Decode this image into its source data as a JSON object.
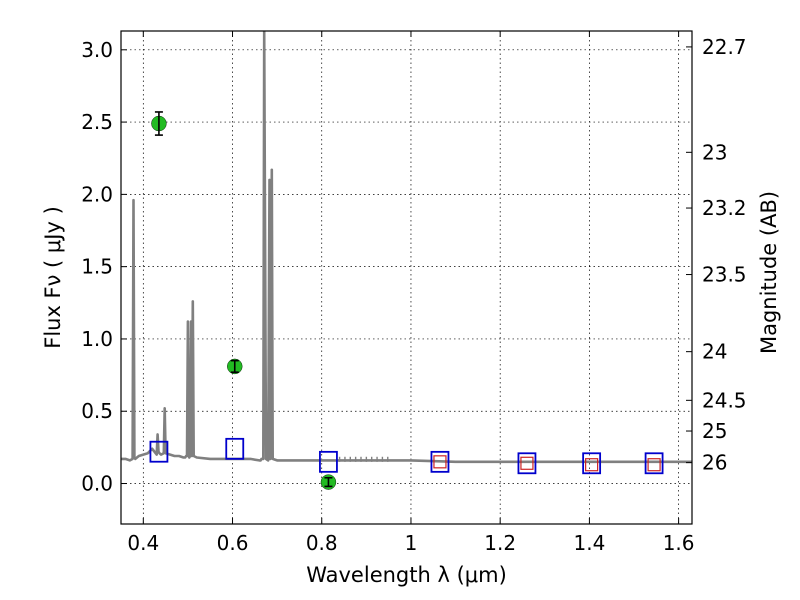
{
  "chart_data": {
    "type": "scatter",
    "xlabel": "Wavelength  λ (μm)",
    "ylabel_left": "Flux  Fν  ( μJy )",
    "ylabel_right": "Magnitude (AB)",
    "xlim": [
      0.35,
      1.63
    ],
    "ylim": [
      -0.28,
      3.13
    ],
    "grid": true,
    "x_ticks": [
      {
        "value": 0.4,
        "label": "0.4"
      },
      {
        "value": 0.6,
        "label": "0.6"
      },
      {
        "value": 0.8,
        "label": "0.8"
      },
      {
        "value": 1.0,
        "label": "1"
      },
      {
        "value": 1.2,
        "label": "1.2"
      },
      {
        "value": 1.4,
        "label": "1.4"
      },
      {
        "value": 1.6,
        "label": "1.6"
      }
    ],
    "y_ticks": [
      {
        "value": 0.0,
        "label": "0.0"
      },
      {
        "value": 0.5,
        "label": "0.5"
      },
      {
        "value": 1.0,
        "label": "1.0"
      },
      {
        "value": 1.5,
        "label": "1.5"
      },
      {
        "value": 2.0,
        "label": "2.0"
      },
      {
        "value": 2.5,
        "label": "2.5"
      },
      {
        "value": 3.0,
        "label": "3.0"
      }
    ],
    "y_right_ticks": [
      {
        "value": 22.7,
        "label": "22.7"
      },
      {
        "value": 23.0,
        "label": "23"
      },
      {
        "value": 23.2,
        "label": "23.2"
      },
      {
        "value": 23.5,
        "label": "23.5"
      },
      {
        "value": 24.0,
        "label": "24"
      },
      {
        "value": 24.5,
        "label": "24.5"
      },
      {
        "value": 25.0,
        "label": "25"
      },
      {
        "value": 26.0,
        "label": "26"
      }
    ],
    "right_axis_zero_point": 23.9,
    "colors": {
      "spectrum": "#808080",
      "observed": "#22bb22",
      "model_box": "#0000cc",
      "red_box": "#cc2222"
    },
    "series": [
      {
        "kind": "spectrum",
        "x": [
          0.35,
          0.36,
          0.37,
          0.376,
          0.378,
          0.38,
          0.382,
          0.39,
          0.4,
          0.41,
          0.42,
          0.43,
          0.432,
          0.434,
          0.436,
          0.44,
          0.446,
          0.448,
          0.45,
          0.46,
          0.47,
          0.48,
          0.49,
          0.494,
          0.496,
          0.498,
          0.5,
          0.502,
          0.503,
          0.505,
          0.507,
          0.509,
          0.511,
          0.513,
          0.52,
          0.55,
          0.6,
          0.64,
          0.66,
          0.663,
          0.665,
          0.669,
          0.671,
          0.675,
          0.68,
          0.683,
          0.685,
          0.688,
          0.69,
          0.7,
          0.75,
          0.8,
          0.85,
          0.9,
          0.95,
          1.0,
          1.1,
          1.2,
          1.3,
          1.4,
          1.5,
          1.63
        ],
        "y": [
          0.17,
          0.17,
          0.16,
          0.17,
          1.96,
          0.18,
          0.17,
          0.19,
          0.2,
          0.21,
          0.24,
          0.2,
          0.34,
          0.22,
          0.21,
          0.2,
          0.21,
          0.52,
          0.21,
          0.2,
          0.19,
          0.19,
          0.18,
          0.18,
          0.19,
          0.19,
          1.12,
          0.19,
          0.18,
          0.19,
          1.12,
          0.19,
          1.26,
          0.19,
          0.18,
          0.17,
          0.17,
          0.17,
          0.16,
          0.16,
          0.17,
          0.17,
          3.13,
          0.17,
          0.16,
          2.1,
          0.17,
          2.17,
          0.17,
          0.16,
          0.16,
          0.16,
          0.16,
          0.16,
          0.16,
          0.16,
          0.15,
          0.15,
          0.15,
          0.15,
          0.15,
          0.15
        ]
      },
      {
        "kind": "observed",
        "x": [
          0.435,
          0.605,
          0.815
        ],
        "y": [
          2.49,
          0.81,
          0.01
        ],
        "yerr": [
          0.08,
          0.04,
          0.03
        ]
      },
      {
        "kind": "model_blue",
        "x": [
          0.435,
          0.605,
          0.815,
          1.065,
          1.26,
          1.405,
          1.545
        ],
        "y": [
          0.22,
          0.24,
          0.15,
          0.15,
          0.14,
          0.14,
          0.14
        ]
      },
      {
        "kind": "model_red",
        "x": [
          1.065,
          1.26,
          1.405,
          1.545
        ],
        "y": [
          0.15,
          0.14,
          0.13,
          0.13
        ]
      }
    ]
  }
}
